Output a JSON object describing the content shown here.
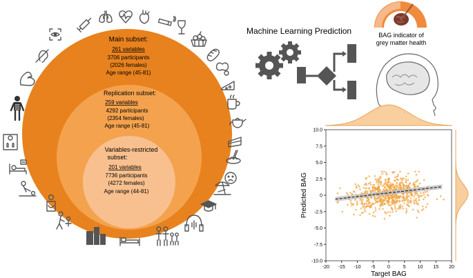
{
  "subsets": [
    {
      "title": "Main subset:",
      "variables": "261 variables",
      "participants": "3706 participants",
      "females": "(2026 females)",
      "age": "Age range (45-81)"
    },
    {
      "title": "Replication subset:",
      "variables": "259 variables",
      "participants": "4292 participants",
      "females": "(2354 females)",
      "age": "Age range (45-81)"
    },
    {
      "title_line1": "Variables-restricted",
      "title_line2": "subset:",
      "variables": "201 variables",
      "participants": "7736 participants",
      "females": "(4272 females)",
      "age": "Age range (44-81)"
    }
  ],
  "ml_title": "Machine Learning Prediction",
  "bag_indicator": {
    "line1": "BAG indicator of",
    "line2": "grey matter health"
  },
  "colors": {
    "outer": "#E8821E",
    "middle": "#F4A24E",
    "inner": "#F8C08E",
    "scatter": "#F2A643",
    "icon": "#555555"
  },
  "icons": [
    "eye-scan-icon",
    "syringe-icon",
    "lungs-icon",
    "heart-rate-icon",
    "heart-icon",
    "cigarette-icon",
    "wine-glass-icon",
    "fruit-basket-icon",
    "bread-icon",
    "peanut-icon",
    "cheese-icon",
    "coffee-cup-icon",
    "teapot-icon",
    "cake-icon",
    "pasta-icon",
    "sad-face-icon",
    "beach-icon",
    "graduation-cap-icon",
    "headphones-icon",
    "family-icon",
    "bed-icon",
    "buildings-icon",
    "elderly-care-icon",
    "injury-icon",
    "cpr-icon",
    "hospital-bed-icon",
    "scale-icon",
    "skeleton-icon",
    "muscle-icon",
    "hearing-icon"
  ],
  "chart_data": {
    "type": "scatter",
    "xlabel": "Target BAG",
    "ylabel": "Predicted BAG",
    "xlim": [
      -20,
      20
    ],
    "ylim": [
      -10,
      10
    ],
    "x_ticks": [
      "-20",
      "-15",
      "-10",
      "-5",
      "0",
      "5",
      "10",
      "15",
      "20"
    ],
    "y_ticks": [
      "10.0",
      "7.5",
      "5.0",
      "2.5",
      "0",
      "-2.5",
      "-5.0",
      "-7.5",
      "-10.0"
    ],
    "regression_line": {
      "x": [
        -17,
        17
      ],
      "y": [
        -0.6,
        1.3
      ]
    },
    "x_distribution": "approximately normal, centered near 0, spread about ±15",
    "y_distribution": "approximately normal, centered near 0, spread about ±3",
    "point_cloud": {
      "n_points": 700,
      "x_mean": 0,
      "x_sd": 6,
      "y_mean": 0.2,
      "y_sd": 1.3
    }
  }
}
